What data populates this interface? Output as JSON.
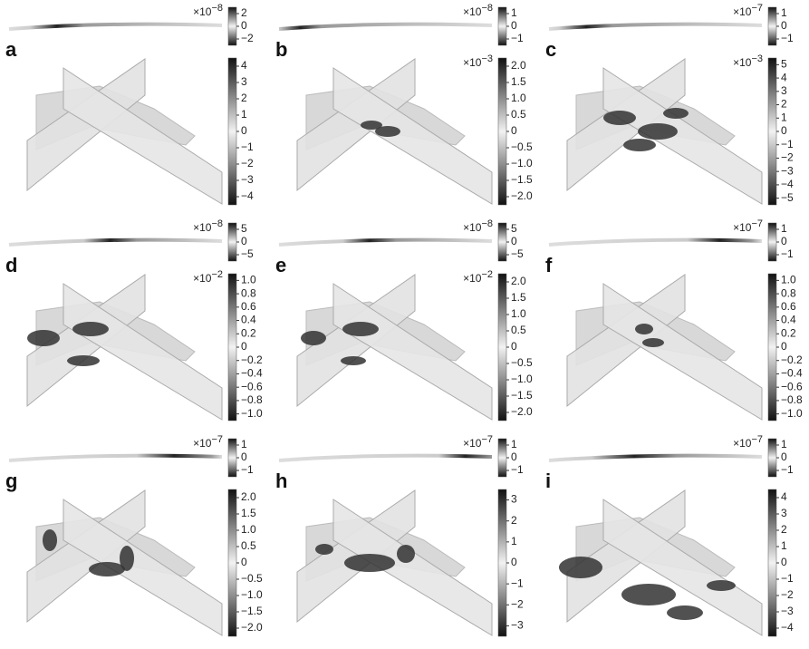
{
  "panels": [
    {
      "label": "a",
      "top_colorbar": {
        "scale_base": "×10",
        "scale_exponent": "−8",
        "ticks": [
          "2",
          "0",
          "−2"
        ]
      },
      "bottom_colorbar": {
        "ticks": [
          "4",
          "3",
          "2",
          "1",
          "0",
          "−1",
          "−2",
          "−3",
          "−4"
        ]
      }
    },
    {
      "label": "b",
      "top_colorbar": {
        "scale_base": "×10",
        "scale_exponent": "−8",
        "ticks": [
          "1",
          "0",
          "−1"
        ]
      },
      "bottom_colorbar": {
        "scale_base": "×10",
        "scale_exponent": "−3",
        "ticks": [
          "2.0",
          "1.5",
          "1.0",
          "0.5",
          "0",
          "−0.5",
          "−1.0",
          "−1.5",
          "−2.0"
        ]
      }
    },
    {
      "label": "c",
      "top_colorbar": {
        "scale_base": "×10",
        "scale_exponent": "−7",
        "ticks": [
          "1",
          "0",
          "−1"
        ]
      },
      "bottom_colorbar": {
        "scale_base": "×10",
        "scale_exponent": "−3",
        "ticks": [
          "5",
          "4",
          "3",
          "2",
          "1",
          "0",
          "−1",
          "−2",
          "−3",
          "−4",
          "−5"
        ]
      }
    },
    {
      "label": "d",
      "top_colorbar": {
        "scale_base": "×10",
        "scale_exponent": "−8",
        "ticks": [
          "5",
          "0",
          "−5"
        ]
      },
      "bottom_colorbar": {
        "scale_base": "×10",
        "scale_exponent": "−2",
        "ticks": [
          "1.0",
          "0.8",
          "0.6",
          "0.4",
          "0.2",
          "0",
          "−0.2",
          "−0.4",
          "−0.6",
          "−0.8",
          "−1.0"
        ]
      }
    },
    {
      "label": "e",
      "top_colorbar": {
        "scale_base": "×10",
        "scale_exponent": "−8",
        "ticks": [
          "5",
          "0",
          "−5"
        ]
      },
      "bottom_colorbar": {
        "scale_base": "×10",
        "scale_exponent": "−2",
        "ticks": [
          "2.0",
          "1.5",
          "1.0",
          "0.5",
          "0",
          "−0.5",
          "−1.0",
          "−1.5",
          "−2.0"
        ]
      }
    },
    {
      "label": "f",
      "top_colorbar": {
        "scale_base": "×10",
        "scale_exponent": "−7",
        "ticks": [
          "1",
          "0",
          "−1"
        ]
      },
      "bottom_colorbar": {
        "ticks": [
          "1.0",
          "0.8",
          "0.6",
          "0.4",
          "0.2",
          "0",
          "−0.2",
          "−0.4",
          "−0.6",
          "−0.8",
          "−1.0"
        ]
      }
    },
    {
      "label": "g",
      "top_colorbar": {
        "scale_base": "×10",
        "scale_exponent": "−7",
        "ticks": [
          "1",
          "0",
          "−1"
        ]
      },
      "bottom_colorbar": {
        "ticks": [
          "2.0",
          "1.5",
          "1.0",
          "0.5",
          "0",
          "−0.5",
          "−1.0",
          "−1.5",
          "−2.0"
        ]
      }
    },
    {
      "label": "h",
      "top_colorbar": {
        "scale_base": "×10",
        "scale_exponent": "−7",
        "ticks": [
          "1",
          "0",
          "−1"
        ]
      },
      "bottom_colorbar": {
        "ticks": [
          "3",
          "2",
          "1",
          "0",
          "−1",
          "−2",
          "−3"
        ]
      }
    },
    {
      "label": "i",
      "top_colorbar": {
        "scale_base": "×10",
        "scale_exponent": "−7",
        "ticks": [
          "1",
          "0",
          "−1"
        ]
      },
      "bottom_colorbar": {
        "ticks": [
          "4",
          "3",
          "2",
          "1",
          "0",
          "−1",
          "−2",
          "−3",
          "−4"
        ]
      }
    }
  ]
}
